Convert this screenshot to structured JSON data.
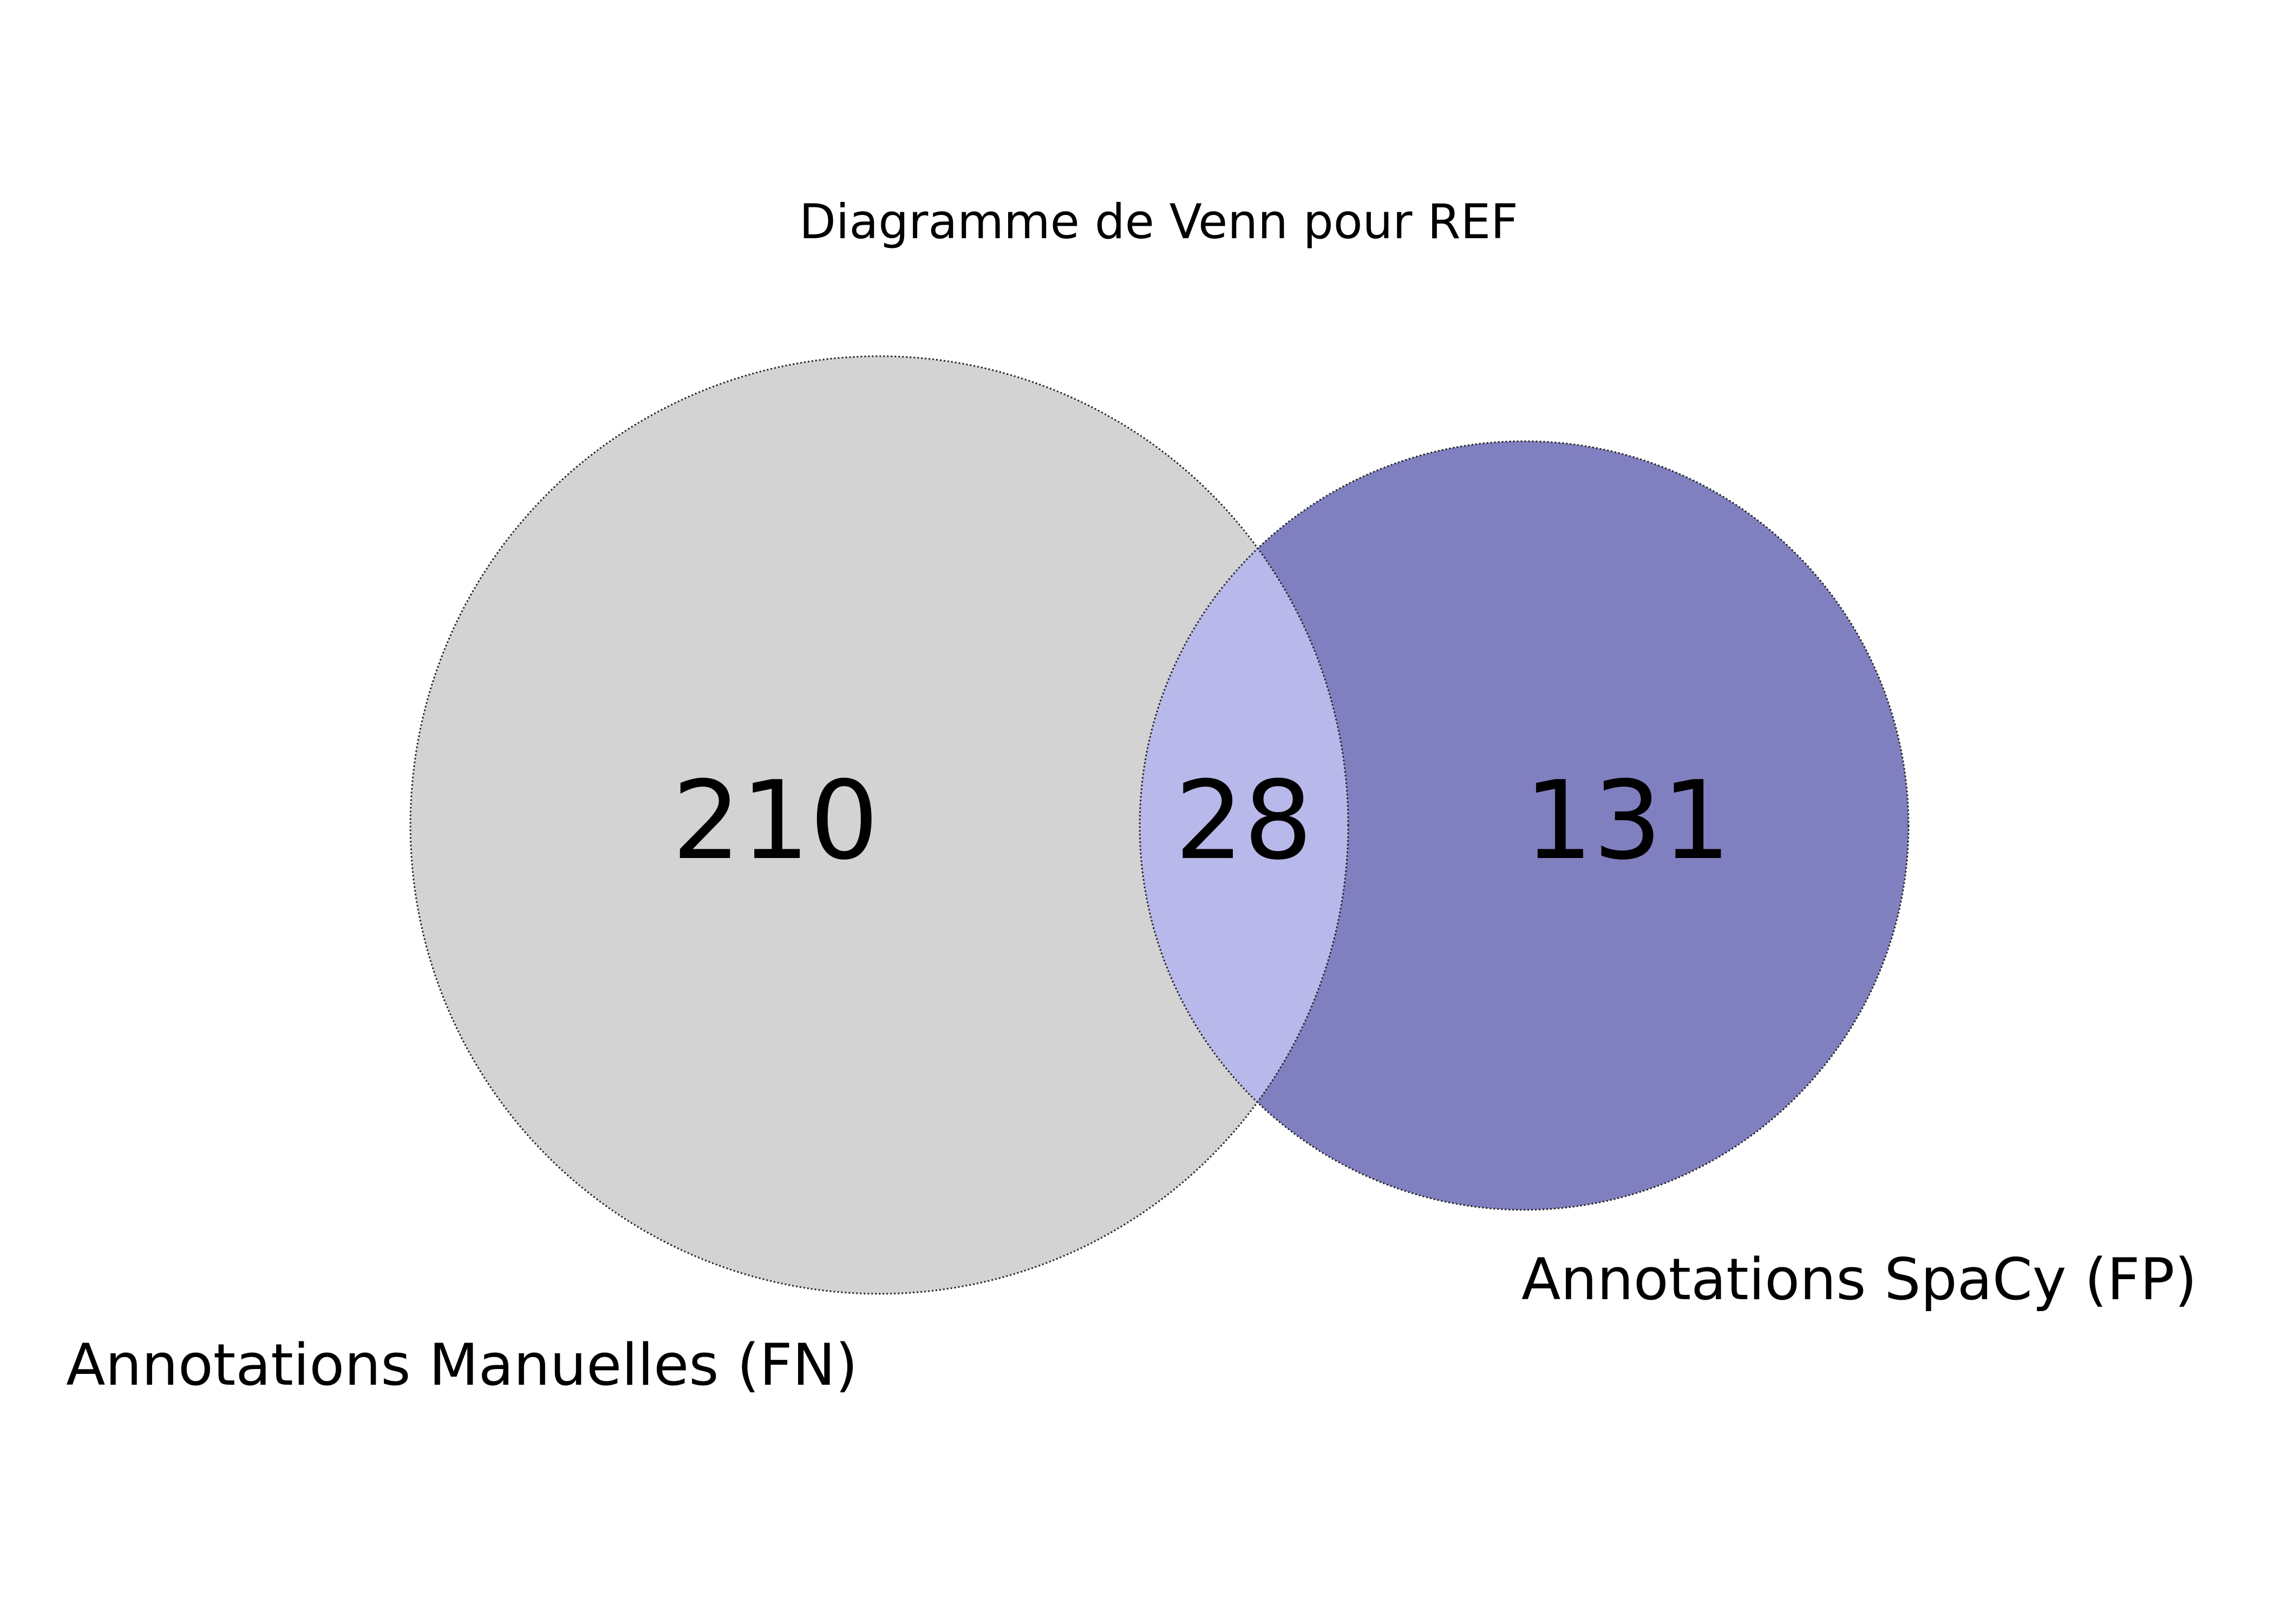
{
  "title": "Diagramme de Venn pour REF",
  "sets": {
    "left": {
      "label": "Annotations Manuelles (FN)",
      "color": "#d3d3d3"
    },
    "right": {
      "label": "Annotations SpaCy (FP)",
      "color": "#8080c1"
    },
    "overlap_color": "#b8b9ea"
  },
  "counts": {
    "left_only": "210",
    "overlap": "28",
    "right_only": "131"
  }
}
